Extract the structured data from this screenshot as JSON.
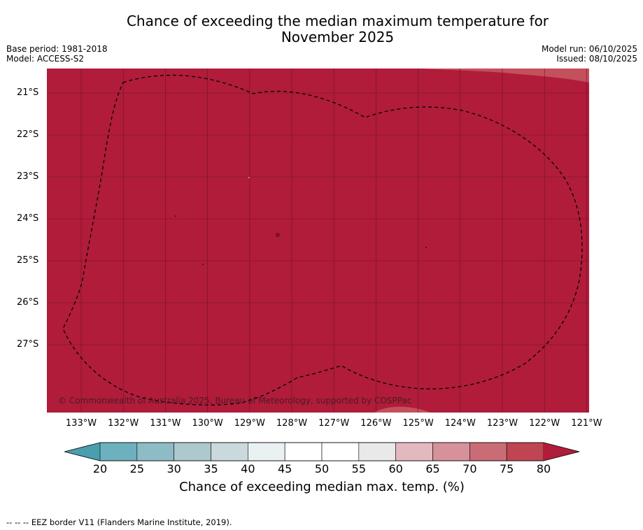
{
  "header": {
    "title_line1": "Chance of exceeding the median maximum temperature for",
    "title_line2": "November 2025",
    "base_period": "Base period: 1981-2018",
    "model": "Model: ACCESS-S2",
    "model_run": "Model run: 06/10/2025",
    "issued": "Issued: 08/10/2025"
  },
  "map": {
    "lat_labels": [
      "21°S",
      "22°S",
      "23°S",
      "24°S",
      "25°S",
      "26°S",
      "27°S"
    ],
    "lon_labels": [
      "133°W",
      "132°W",
      "131°W",
      "130°W",
      "129°W",
      "128°W",
      "127°W",
      "126°W",
      "125°W",
      "124°W",
      "123°W",
      "122°W",
      "121°W"
    ],
    "copyright": "© Commonwealth of Australia 2025, Bureau of Meteorology, supported by COSPPac",
    "field_color": "#b01c3a",
    "light_patch_color": "#c4505c"
  },
  "colorbar": {
    "ticks": [
      "20",
      "25",
      "30",
      "35",
      "40",
      "45",
      "50",
      "55",
      "60",
      "65",
      "70",
      "75",
      "80"
    ],
    "segment_colors": [
      "#6db0be",
      "#8ebcc6",
      "#acc9cd",
      "#cad9dc",
      "#eaf1f3",
      "#ffffff",
      "#ffffff",
      "#e9e9e9",
      "#e3b9bf",
      "#d6919a",
      "#c96c76",
      "#bf4552"
    ],
    "under_color": "#4a9eae",
    "over_color": "#b01c3a",
    "label": "Chance of exceeding median max. temp. (%)"
  },
  "footer": {
    "legend": "--  --  -- EEZ border V11 (Flanders Marine Institute, 2019)."
  }
}
